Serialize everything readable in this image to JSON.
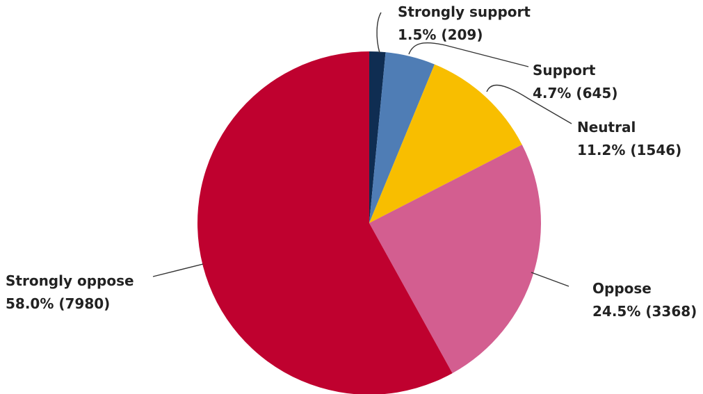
{
  "chart_data": {
    "type": "pie",
    "start": "top",
    "direction": "clockwise",
    "slices": [
      {
        "name": "Strongly support",
        "value": 209,
        "percent": "1.5%",
        "pct_text": "1.5% (209)",
        "color": "#0f2d52"
      },
      {
        "name": "Support",
        "value": 645,
        "percent": "4.7%",
        "pct_text": "4.7% (645)",
        "color": "#4f7db5"
      },
      {
        "name": "Neutral",
        "value": 1546,
        "percent": "11.2%",
        "pct_text": "11.2% (1546)",
        "color": "#f8be00"
      },
      {
        "name": "Oppose",
        "value": 3368,
        "percent": "24.5%",
        "pct_text": "24.5% (3368)",
        "color": "#d35e90"
      },
      {
        "name": "Strongly oppose",
        "value": 7980,
        "percent": "58.0%",
        "pct_text": "58.0% (7980)",
        "color": "#bf012f"
      }
    ]
  }
}
